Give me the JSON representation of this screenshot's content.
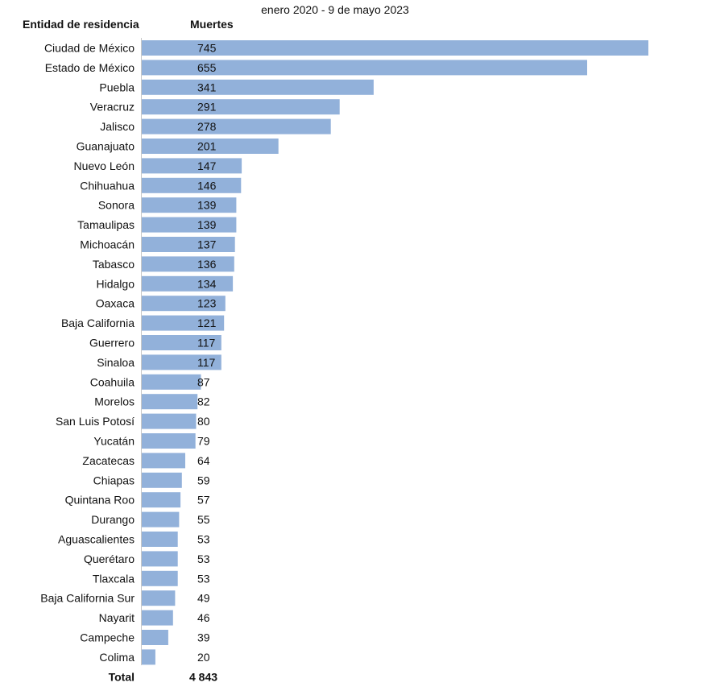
{
  "chart_data": {
    "type": "bar",
    "orientation": "horizontal",
    "subtitle": "enero 2020 - 9 de mayo 2023",
    "category_header": "Entidad de residencia",
    "value_header": "Muertes",
    "bar_color": "#92b1da",
    "categories": [
      "Ciudad de México",
      "Estado de México",
      "Puebla",
      "Veracruz",
      "Jalisco",
      "Guanajuato",
      "Nuevo León",
      "Chihuahua",
      "Sonora",
      "Tamaulipas",
      "Michoacán",
      "Tabasco",
      "Hidalgo",
      "Oaxaca",
      "Baja California",
      "Guerrero",
      "Sinaloa",
      "Coahuila",
      "Morelos",
      "San Luis Potosí",
      "Yucatán",
      "Zacatecas",
      "Chiapas",
      "Quintana Roo",
      "Durango",
      "Aguascalientes",
      "Querétaro",
      "Tlaxcala",
      "Baja California Sur",
      "Nayarit",
      "Campeche",
      "Colima"
    ],
    "values": [
      745,
      655,
      341,
      291,
      278,
      201,
      147,
      146,
      139,
      139,
      137,
      136,
      134,
      123,
      121,
      117,
      117,
      87,
      82,
      80,
      79,
      64,
      59,
      57,
      55,
      53,
      53,
      53,
      49,
      46,
      39,
      20
    ],
    "total_label": "Total",
    "total_value": "4 843",
    "xlim": [
      0,
      745
    ]
  }
}
